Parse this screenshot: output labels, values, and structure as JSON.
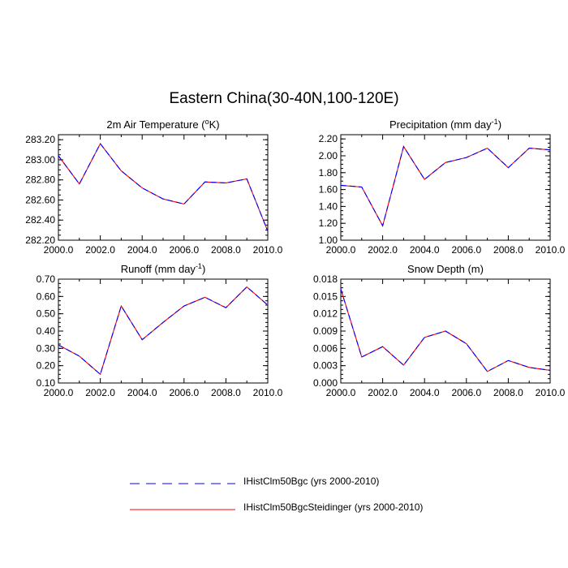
{
  "figure_title": "Eastern China(30-40N,100-120E)",
  "legend": [
    {
      "label": "IHistClm50Bgc (yrs 2000-2010)",
      "color": "#0000ff",
      "dash": "dashed"
    },
    {
      "label": "IHistClm50BgcSteidinger (yrs 2000-2010)",
      "color": "#ff0000",
      "dash": "solid"
    }
  ],
  "chart_data": [
    {
      "type": "line",
      "title": "2m Air Temperature (°K)",
      "title_parts": {
        "pre": "2m Air Temperature (",
        "sup": "o",
        "post": "K)"
      },
      "x": [
        2000,
        2001,
        2002,
        2003,
        2004,
        2005,
        2006,
        2007,
        2008,
        2009,
        2010
      ],
      "xlim": [
        2000,
        2010
      ],
      "xticks": [
        "2000.0",
        "2002.0",
        "2004.0",
        "2006.0",
        "2008.0",
        "2010.0"
      ],
      "ylim": [
        282.2,
        283.25
      ],
      "yticks": [
        "282.20",
        "282.40",
        "282.60",
        "282.80",
        "283.00",
        "283.20"
      ],
      "series": [
        {
          "name": "IHistClm50Bgc (yrs 2000-2010)",
          "values": [
            283.04,
            282.76,
            283.16,
            282.89,
            282.72,
            282.61,
            282.56,
            282.78,
            282.77,
            282.81,
            282.29
          ]
        },
        {
          "name": "IHistClm50BgcSteidinger (yrs 2000-2010)",
          "values": [
            283.04,
            282.76,
            283.16,
            282.89,
            282.72,
            282.61,
            282.56,
            282.78,
            282.77,
            282.81,
            282.29
          ]
        }
      ]
    },
    {
      "type": "line",
      "title": "Precipitation (mm day-1)",
      "title_parts": {
        "pre": "Precipitation (mm day",
        "sup": "-1",
        "post": ")"
      },
      "x": [
        2000,
        2001,
        2002,
        2003,
        2004,
        2005,
        2006,
        2007,
        2008,
        2009,
        2010
      ],
      "xlim": [
        2000,
        2010
      ],
      "xticks": [
        "2000.0",
        "2002.0",
        "2004.0",
        "2006.0",
        "2008.0",
        "2010.0"
      ],
      "ylim": [
        1.0,
        2.25
      ],
      "yticks": [
        "1.00",
        "1.20",
        "1.40",
        "1.60",
        "1.80",
        "2.00",
        "2.20"
      ],
      "series": [
        {
          "name": "IHistClm50Bgc (yrs 2000-2010)",
          "values": [
            1.65,
            1.63,
            1.17,
            2.11,
            1.72,
            1.92,
            1.98,
            2.09,
            1.86,
            2.09,
            2.07
          ]
        },
        {
          "name": "IHistClm50BgcSteidinger (yrs 2000-2010)",
          "values": [
            1.65,
            1.63,
            1.17,
            2.11,
            1.72,
            1.92,
            1.98,
            2.09,
            1.86,
            2.09,
            2.07
          ]
        }
      ]
    },
    {
      "type": "line",
      "title": "Runoff (mm day-1)",
      "title_parts": {
        "pre": "Runoff (mm day",
        "sup": "-1",
        "post": ")"
      },
      "x": [
        2000,
        2001,
        2002,
        2003,
        2004,
        2005,
        2006,
        2007,
        2008,
        2009,
        2010
      ],
      "xlim": [
        2000,
        2010
      ],
      "xticks": [
        "2000.0",
        "2002.0",
        "2004.0",
        "2006.0",
        "2008.0",
        "2010.0"
      ],
      "ylim": [
        0.1,
        0.7
      ],
      "yticks": [
        "0.10",
        "0.20",
        "0.30",
        "0.40",
        "0.50",
        "0.60",
        "0.70"
      ],
      "series": [
        {
          "name": "IHistClm50Bgc (yrs 2000-2010)",
          "values": [
            0.32,
            0.255,
            0.15,
            0.545,
            0.35,
            0.45,
            0.545,
            0.595,
            0.535,
            0.655,
            0.55
          ]
        },
        {
          "name": "IHistClm50BgcSteidinger (yrs 2000-2010)",
          "values": [
            0.32,
            0.255,
            0.15,
            0.545,
            0.35,
            0.45,
            0.545,
            0.595,
            0.535,
            0.655,
            0.55
          ]
        }
      ]
    },
    {
      "type": "line",
      "title": "Snow Depth (m)",
      "title_parts": {
        "pre": "Snow Depth (m)",
        "sup": "",
        "post": ""
      },
      "x": [
        2000,
        2001,
        2002,
        2003,
        2004,
        2005,
        2006,
        2007,
        2008,
        2009,
        2010
      ],
      "xlim": [
        2000,
        2010
      ],
      "xticks": [
        "2000.0",
        "2002.0",
        "2004.0",
        "2006.0",
        "2008.0",
        "2010.0"
      ],
      "ylim": [
        0.0,
        0.018
      ],
      "yticks": [
        "0.000",
        "0.003",
        "0.006",
        "0.009",
        "0.012",
        "0.015",
        "0.018"
      ],
      "series": [
        {
          "name": "IHistClm50Bgc (yrs 2000-2010)",
          "values": [
            0.0163,
            0.0045,
            0.0063,
            0.0031,
            0.0079,
            0.009,
            0.0068,
            0.002,
            0.0039,
            0.0027,
            0.0022
          ]
        },
        {
          "name": "IHistClm50BgcSteidinger (yrs 2000-2010)",
          "values": [
            0.0163,
            0.0045,
            0.0063,
            0.0031,
            0.0079,
            0.009,
            0.0068,
            0.002,
            0.0039,
            0.0027,
            0.0022
          ]
        }
      ]
    }
  ]
}
